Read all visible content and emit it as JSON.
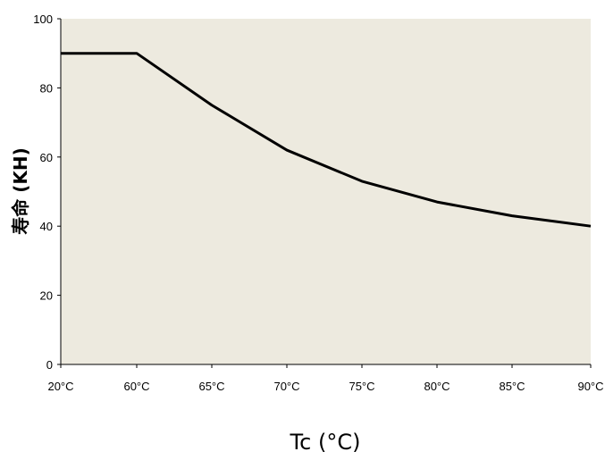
{
  "chart_data": {
    "type": "line",
    "title": "",
    "xlabel": "Tc (°C)",
    "ylabel": "寿命 (KH)",
    "categories": [
      "20°C",
      "60°C",
      "65°C",
      "70°C",
      "75°C",
      "80°C",
      "85°C",
      "90°C"
    ],
    "series": [
      {
        "values": [
          90,
          90,
          75,
          62,
          53,
          47,
          43,
          40
        ]
      }
    ],
    "ylim": [
      0,
      100
    ],
    "yticks": [
      "0",
      "20",
      "40",
      "60",
      "80",
      "100"
    ],
    "grid": false,
    "legend": "none",
    "colors": {
      "plot_background": "#EDEADF",
      "line": "#000000",
      "axis": "#000000"
    }
  }
}
